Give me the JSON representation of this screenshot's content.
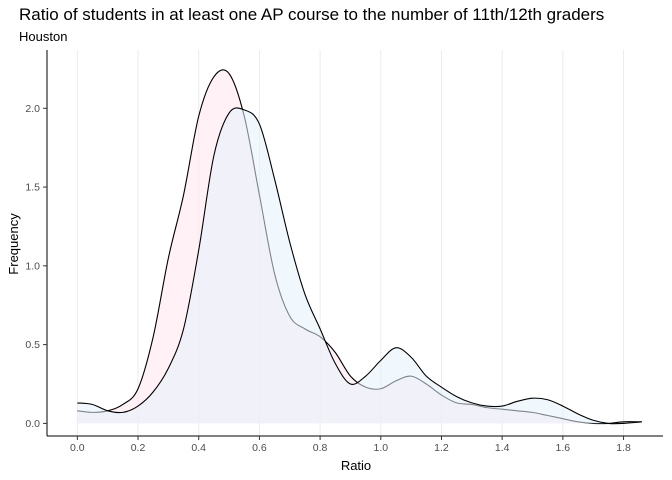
{
  "chart_data": {
    "type": "area",
    "title": "Ratio of students in at least one AP course to the number of 11th/12th graders",
    "subtitle": "Houston",
    "xlabel": "Ratio",
    "ylabel": "Frequency",
    "xlim": [
      -0.1,
      1.93
    ],
    "ylim": [
      -0.08,
      2.37
    ],
    "x_ticks": [
      0.0,
      0.2,
      0.4,
      0.6,
      0.8,
      1.0,
      1.2,
      1.4,
      1.6,
      1.8
    ],
    "x_tick_labels": [
      "0.0",
      "0.2",
      "0.4",
      "0.6",
      "0.8",
      "1.0",
      "1.2",
      "1.4",
      "1.6",
      "1.8"
    ],
    "y_ticks": [
      0.0,
      0.5,
      1.0,
      1.5,
      2.0
    ],
    "y_tick_labels": [
      "0.0",
      "0.5",
      "1.0",
      "1.5",
      "2.0"
    ],
    "grid": "vertical major lines",
    "legend": "none",
    "series": [
      {
        "fill": "#ffe6ee",
        "x": [
          0.0,
          0.05,
          0.1,
          0.15,
          0.2,
          0.25,
          0.3,
          0.35,
          0.4,
          0.45,
          0.5,
          0.55,
          0.6,
          0.65,
          0.7,
          0.75,
          0.8,
          0.85,
          0.9,
          0.95,
          1.0,
          1.05,
          1.1,
          1.15,
          1.2,
          1.25,
          1.3,
          1.35,
          1.4,
          1.45,
          1.5,
          1.55,
          1.6,
          1.65,
          1.7,
          1.75,
          1.8,
          1.86
        ],
        "y": [
          0.08,
          0.07,
          0.08,
          0.12,
          0.22,
          0.55,
          1.05,
          1.45,
          1.95,
          2.2,
          2.22,
          1.95,
          1.45,
          0.95,
          0.68,
          0.6,
          0.55,
          0.45,
          0.3,
          0.23,
          0.22,
          0.27,
          0.3,
          0.25,
          0.18,
          0.13,
          0.12,
          0.1,
          0.09,
          0.08,
          0.07,
          0.05,
          0.03,
          0.01,
          0.0,
          0.0,
          0.01,
          0.01
        ]
      },
      {
        "fill": "#e6f3fb",
        "x": [
          0.0,
          0.05,
          0.1,
          0.15,
          0.2,
          0.25,
          0.3,
          0.35,
          0.4,
          0.45,
          0.5,
          0.55,
          0.6,
          0.65,
          0.7,
          0.75,
          0.8,
          0.85,
          0.9,
          0.95,
          1.0,
          1.05,
          1.1,
          1.15,
          1.2,
          1.25,
          1.3,
          1.35,
          1.4,
          1.45,
          1.5,
          1.55,
          1.6,
          1.65,
          1.7,
          1.75,
          1.8,
          1.86
        ],
        "y": [
          0.13,
          0.12,
          0.08,
          0.07,
          0.11,
          0.2,
          0.35,
          0.6,
          1.1,
          1.7,
          1.97,
          1.99,
          1.9,
          1.55,
          1.15,
          0.82,
          0.6,
          0.38,
          0.25,
          0.3,
          0.4,
          0.48,
          0.42,
          0.3,
          0.23,
          0.17,
          0.13,
          0.11,
          0.11,
          0.14,
          0.16,
          0.15,
          0.11,
          0.06,
          0.02,
          0.0,
          0.0,
          0.01
        ]
      }
    ]
  }
}
